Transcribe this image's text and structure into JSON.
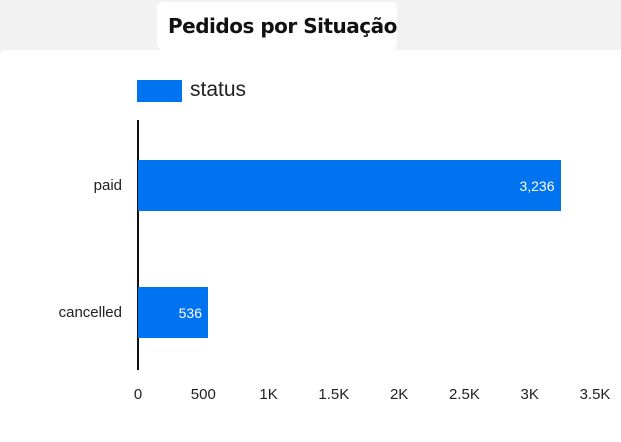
{
  "title": "Pedidos por Situação",
  "legend": {
    "label": "status",
    "color": "#0073f0"
  },
  "chart_data": {
    "type": "bar",
    "orientation": "horizontal",
    "title": "Pedidos por Situação",
    "categories": [
      "paid",
      "cancelled"
    ],
    "series": [
      {
        "name": "status",
        "values": [
          3236,
          536
        ],
        "color": "#0073f0"
      }
    ],
    "value_labels": [
      "3,236",
      "536"
    ],
    "xlabel": "",
    "ylabel": "",
    "xlim": [
      0,
      3500
    ],
    "x_ticks": [
      "0",
      "500",
      "1K",
      "1.5K",
      "2K",
      "2.5K",
      "3K",
      "3.5K"
    ],
    "legend_position": "top-left",
    "grid": false
  }
}
